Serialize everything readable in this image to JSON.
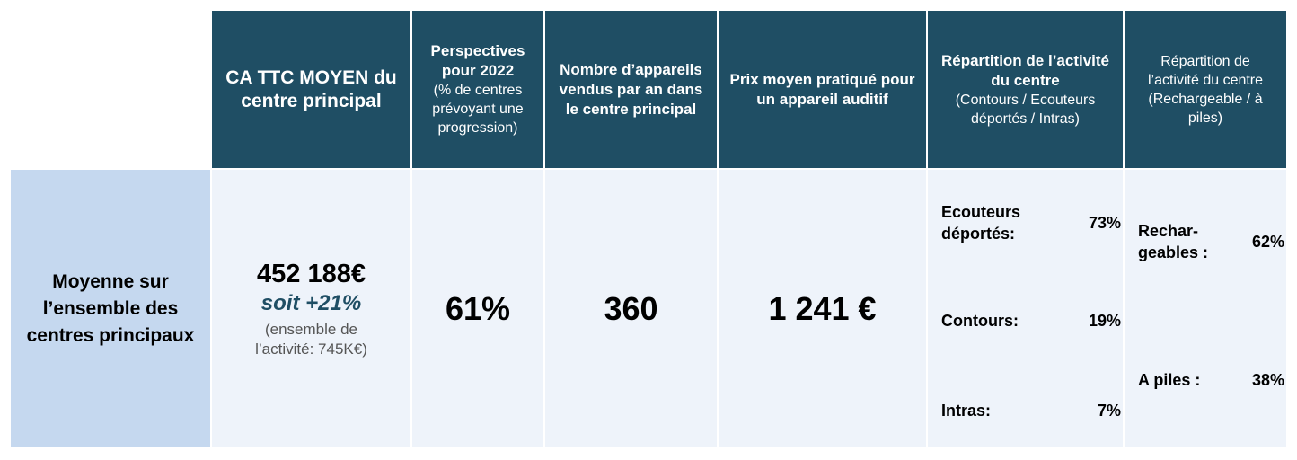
{
  "headers": {
    "ca": "CA TTC MOYEN du centre principal",
    "perspectives_title": "Perspectives pour 2022",
    "perspectives_sub": "(% de centres prévoyant une progression)",
    "appareils": "Nombre d’appareils vendus par an dans le centre principal",
    "prix": "Prix moyen pratiqué pour un appareil auditif",
    "repartition1_title": "Répartition de l’activité du centre",
    "repartition1_sub": "(Contours / Ecouteurs déportés / Intras)",
    "repartition2": "Répartition de l’activité du centre (Rechargeable / à piles)"
  },
  "row": {
    "label": "Moyenne sur l’ensemble des centres principaux",
    "ca_value": "452 188€",
    "ca_growth": "soit +21%",
    "ca_note": "(ensemble de l’activité: 745K€)",
    "perspectives": "61%",
    "appareils": "360",
    "prix": "1 241 €",
    "repartition1": [
      {
        "label": "Ecouteurs déportés:",
        "value": "73%"
      },
      {
        "label": "Contours:",
        "value": "19%"
      },
      {
        "label": "Intras:",
        "value": "7%"
      }
    ],
    "repartition2": [
      {
        "label": "Rechar-geables :",
        "value": "62%"
      },
      {
        "label": "A piles :",
        "value": "38%"
      }
    ]
  }
}
